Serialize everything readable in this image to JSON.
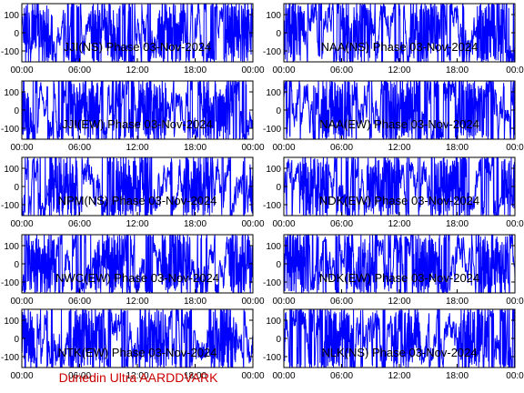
{
  "colors": {
    "trace": "#0000ff",
    "axis": "#000000",
    "footer": "#cc0000",
    "background": "#ffffff"
  },
  "footer": "Dunedin Ultra AARDDVARK",
  "chart_data": [
    {
      "type": "line",
      "title": "JJI(NS) Phase  03-Nov-2024",
      "ylim": [
        -160,
        160
      ],
      "yticks": [
        100,
        0,
        -100
      ],
      "xticks": [
        "00:00",
        "06:00",
        "12:00",
        "18:00",
        "00:00"
      ],
      "xlim_hours": [
        0,
        24
      ],
      "trace_style": "dense noisy phase trace wrapping between -180 and 180 degrees"
    },
    {
      "type": "line",
      "title": "NAA(NS) Phase  03-Nov-2024",
      "ylim": [
        -160,
        160
      ],
      "yticks": [
        100,
        0,
        -100
      ],
      "xticks": [
        "00:00",
        "06:00",
        "12:00",
        "18:00",
        "00:0"
      ],
      "xlim_hours": [
        0,
        24
      ],
      "trace_style": "dense noisy phase trace wrapping between -180 and 180 degrees"
    },
    {
      "type": "line",
      "title": "JJI(EW) Phase  03-Nov-2024",
      "ylim": [
        -160,
        160
      ],
      "yticks": [
        100,
        0,
        -100
      ],
      "xticks": [
        "00:00",
        "06:00",
        "12:00",
        "18:00",
        "00:00"
      ],
      "xlim_hours": [
        0,
        24
      ],
      "trace_style": "dense noisy phase trace wrapping between -180 and 180 degrees"
    },
    {
      "type": "line",
      "title": "NAA(EW) Phase  03-Nov-2024",
      "ylim": [
        -160,
        160
      ],
      "yticks": [
        100,
        0,
        -100
      ],
      "xticks": [
        "00:00",
        "06:00",
        "12:00",
        "18:00",
        "00:0"
      ],
      "xlim_hours": [
        0,
        24
      ],
      "trace_style": "dense noisy phase trace wrapping between -180 and 180 degrees"
    },
    {
      "type": "line",
      "title": "NPM(NS) Phase  03-Nov-2024",
      "ylim": [
        -160,
        160
      ],
      "yticks": [
        100,
        0,
        -100
      ],
      "xticks": [
        "00:00",
        "06:00",
        "12:00",
        "18:00",
        "00:00"
      ],
      "xlim_hours": [
        0,
        24
      ],
      "trace_style": "dense noisy phase trace wrapping between -180 and 180 degrees"
    },
    {
      "type": "line",
      "title": "NDK(EW) Phase  03-Nov-2024",
      "ylim": [
        -160,
        160
      ],
      "yticks": [
        100,
        0,
        -100
      ],
      "xticks": [
        "00:00",
        "06:00",
        "12:00",
        "18:00",
        "00:0"
      ],
      "xlim_hours": [
        0,
        24
      ],
      "trace_style": "dense noisy phase trace wrapping between -180 and 180 degrees"
    },
    {
      "type": "line",
      "title": "NWC(EW) Phase  03-Nov-2024",
      "ylim": [
        -160,
        160
      ],
      "yticks": [
        100,
        0,
        -100
      ],
      "xticks": [
        "00:00",
        "06:00",
        "12:00",
        "18:00",
        "00:00"
      ],
      "xlim_hours": [
        0,
        24
      ],
      "trace_style": "dense noisy phase trace wrapping between -180 and 180 degrees"
    },
    {
      "type": "line",
      "title": "NDK(EW) Phase  03-Nov-2024",
      "ylim": [
        -160,
        160
      ],
      "yticks": [
        100,
        0,
        -100
      ],
      "xticks": [
        "00:00",
        "06:00",
        "12:00",
        "18:00",
        "00:0"
      ],
      "xlim_hours": [
        0,
        24
      ],
      "trace_style": "dense noisy phase trace wrapping between -180 and 180 degrees"
    },
    {
      "type": "line",
      "title": "NTK(EW) Phase  03-Nov-2024",
      "ylim": [
        -160,
        160
      ],
      "yticks": [
        100,
        0,
        -100
      ],
      "xticks": [
        "00:00",
        "06:00",
        "12:00",
        "18:00",
        "00:00"
      ],
      "xlim_hours": [
        0,
        24
      ],
      "trace_style": "dense noisy phase trace wrapping between -180 and 180 degrees"
    },
    {
      "type": "line",
      "title": "NLK(NS) Phase  03-Nov-2024",
      "ylim": [
        -160,
        160
      ],
      "yticks": [
        100,
        0,
        -100
      ],
      "xticks": [
        "00:00",
        "06:00",
        "12:00",
        "18:00",
        "00:0"
      ],
      "xlim_hours": [
        0,
        24
      ],
      "trace_style": "dense noisy phase trace wrapping between -180 and 180 degrees"
    }
  ]
}
